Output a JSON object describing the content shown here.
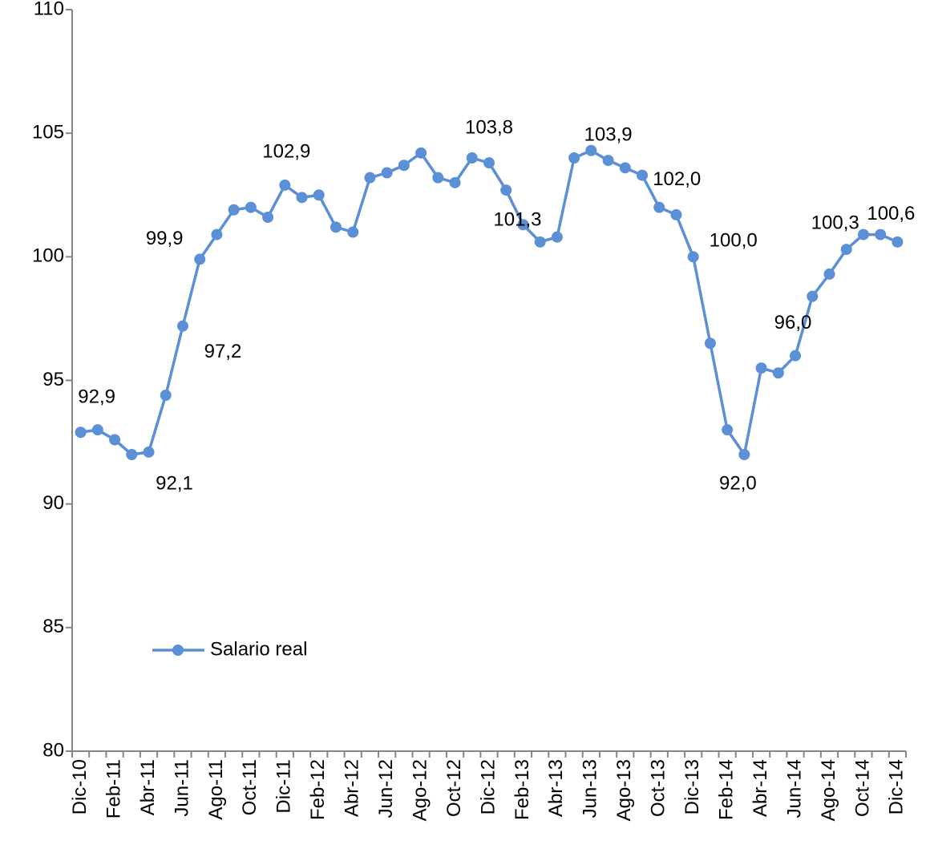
{
  "chart_data": {
    "type": "line",
    "categories": [
      "Dic-10",
      null,
      "Feb-11",
      null,
      "Abr-11",
      null,
      "Jun-11",
      null,
      "Ago-11",
      null,
      "Oct-11",
      null,
      "Dic-11",
      null,
      "Feb-12",
      null,
      "Abr-12",
      null,
      "Jun-12",
      null,
      "Ago-12",
      null,
      "Oct-12",
      null,
      "Dic-12",
      null,
      "Feb-13",
      null,
      "Abr-13",
      null,
      "Jun-13",
      null,
      "Ago-13",
      null,
      "Oct-13",
      null,
      "Dic-13",
      null,
      "Feb-14",
      null,
      "Abr-14",
      null,
      "Jun-14",
      null,
      "Ago-14",
      null,
      "Oct-14",
      null,
      "Dic-14"
    ],
    "series": [
      {
        "name": "Salario real",
        "color": "#5b8fd6",
        "values": [
          92.9,
          93.0,
          92.6,
          92.0,
          92.1,
          94.4,
          97.2,
          99.9,
          100.9,
          101.9,
          102.0,
          101.6,
          102.9,
          102.4,
          102.5,
          101.2,
          101.0,
          103.2,
          103.4,
          103.7,
          104.2,
          103.2,
          103.0,
          104.0,
          103.8,
          102.7,
          101.3,
          100.6,
          100.8,
          104.0,
          104.3,
          103.9,
          103.6,
          103.3,
          102.0,
          101.7,
          100.0,
          96.5,
          93.0,
          92.0,
          95.5,
          95.3,
          96.0,
          98.4,
          99.3,
          100.3,
          100.9,
          100.9,
          100.6
        ],
        "value_labels": [
          "92,9",
          null,
          null,
          null,
          "92,1",
          null,
          "97,2",
          "99,9",
          null,
          null,
          null,
          null,
          "102,9",
          null,
          null,
          null,
          null,
          null,
          null,
          null,
          null,
          null,
          null,
          null,
          "103,8",
          null,
          "101,3",
          null,
          null,
          null,
          null,
          "103,9",
          null,
          null,
          "102,0",
          null,
          "100,0",
          null,
          null,
          "92,0",
          null,
          null,
          "96,0",
          null,
          null,
          "100,3",
          null,
          null,
          "100,6"
        ]
      }
    ],
    "ylim": [
      80,
      110
    ],
    "yticks": [
      80,
      85,
      90,
      95,
      100,
      105,
      110
    ],
    "grid": false,
    "legend": "lower left"
  }
}
